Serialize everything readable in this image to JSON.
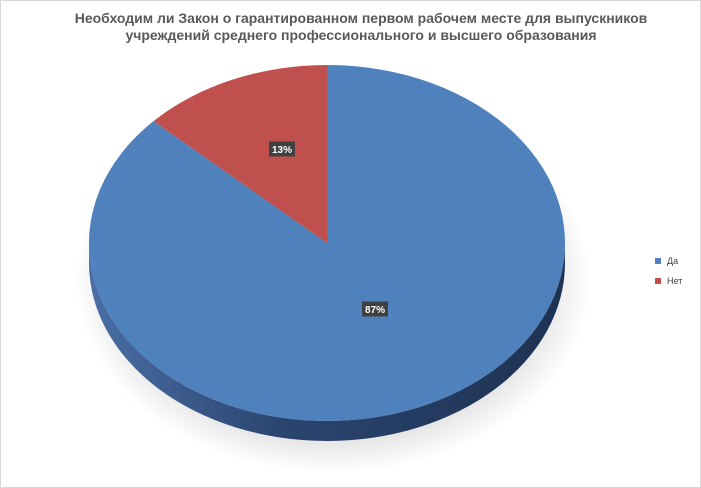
{
  "chart_data": {
    "type": "pie",
    "title_lines": [
      "Необходим ли Закон о гарантированном первом рабочем месте для выпускников",
      "учреждений среднего профессионального и высшего образования"
    ],
    "categories": [
      "Да",
      "Нет"
    ],
    "values": [
      87,
      13
    ],
    "labels": [
      "87%",
      "13%"
    ],
    "colors": [
      "#4f81bd",
      "#c0504d"
    ],
    "side_colors": [
      "#2c4770",
      "#7a2f2d"
    ],
    "style": "3d",
    "legend_position": "right"
  }
}
